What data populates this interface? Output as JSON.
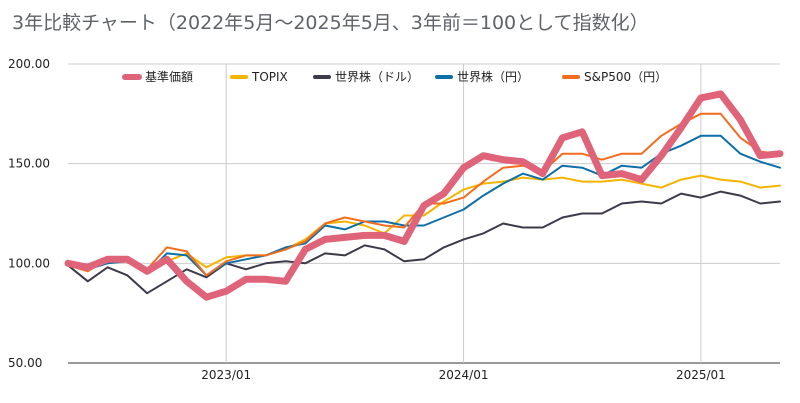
{
  "chart_data": {
    "type": "line",
    "title": "3年比較チャート（2022年5月～2025年5月、3年前＝100として指数化）",
    "xlabel": "",
    "ylabel": "",
    "ylim": [
      50,
      200
    ],
    "y_ticks": [
      "50.00",
      "100.00",
      "150.00",
      "200.00"
    ],
    "y_tick_values": [
      50,
      100,
      150,
      200
    ],
    "x_tick_labels": [
      "2023/01",
      "2024/01",
      "2025/01"
    ],
    "x_tick_months": [
      "2023-01",
      "2024-01",
      "2025-01"
    ],
    "grid": "vertical lines at year ticks; horizontal lines at y ticks",
    "legend_position": "top",
    "x": [
      "2022-05",
      "2022-06",
      "2022-07",
      "2022-08",
      "2022-09",
      "2022-10",
      "2022-11",
      "2022-12",
      "2023-01",
      "2023-02",
      "2023-03",
      "2023-04",
      "2023-05",
      "2023-06",
      "2023-07",
      "2023-08",
      "2023-09",
      "2023-10",
      "2023-11",
      "2023-12",
      "2024-01",
      "2024-02",
      "2024-03",
      "2024-04",
      "2024-05",
      "2024-06",
      "2024-07",
      "2024-08",
      "2024-09",
      "2024-10",
      "2024-11",
      "2024-12",
      "2025-01",
      "2025-02",
      "2025-03",
      "2025-04",
      "2025-05"
    ],
    "series": [
      {
        "name": "基準価額",
        "color": "#e06479",
        "values": [
          100,
          98,
          102,
          102,
          96,
          102,
          91,
          83,
          86,
          92,
          92,
          91,
          107,
          112,
          113,
          114,
          114,
          111,
          129,
          135,
          148,
          154,
          152,
          151,
          145,
          163,
          166,
          144,
          145,
          142,
          154,
          168,
          183,
          185,
          172,
          154,
          155
        ]
      },
      {
        "name": "TOPIX",
        "color": "#f4b400",
        "values": [
          100,
          97,
          101,
          103,
          95,
          101,
          105,
          98,
          103,
          104,
          104,
          107,
          112,
          120,
          121,
          119,
          115,
          124,
          124,
          131,
          137,
          140,
          141,
          143,
          142,
          143,
          141,
          141,
          142,
          140,
          138,
          142,
          144,
          142,
          141,
          138,
          139
        ]
      },
      {
        "name": "世界株（ドル）",
        "color": "#3f3a49",
        "values": [
          99,
          91,
          98,
          94,
          85,
          91,
          97,
          93,
          100,
          97,
          100,
          101,
          100,
          105,
          104,
          109,
          107,
          101,
          102,
          108,
          112,
          115,
          120,
          118,
          118,
          123,
          125,
          125,
          130,
          131,
          130,
          135,
          133,
          136,
          134,
          130,
          131
        ]
      },
      {
        "name": "世界株（円）",
        "color": "#0e6fa8",
        "values": [
          99,
          97,
          100,
          101,
          95,
          105,
          104,
          94,
          100,
          102,
          104,
          108,
          110,
          119,
          117,
          121,
          121,
          119,
          119,
          123,
          127,
          134,
          140,
          145,
          142,
          149,
          148,
          144,
          149,
          148,
          155,
          159,
          164,
          164,
          155,
          151,
          148
        ]
      },
      {
        "name": "S&P500（円）",
        "color": "#f26d1e",
        "values": [
          99,
          96,
          102,
          103,
          97,
          108,
          106,
          94,
          101,
          104,
          104,
          107,
          111,
          120,
          123,
          121,
          119,
          118,
          130,
          130,
          133,
          141,
          148,
          149,
          146,
          155,
          155,
          152,
          155,
          155,
          164,
          170,
          175,
          175,
          163,
          156,
          155
        ]
      }
    ]
  }
}
